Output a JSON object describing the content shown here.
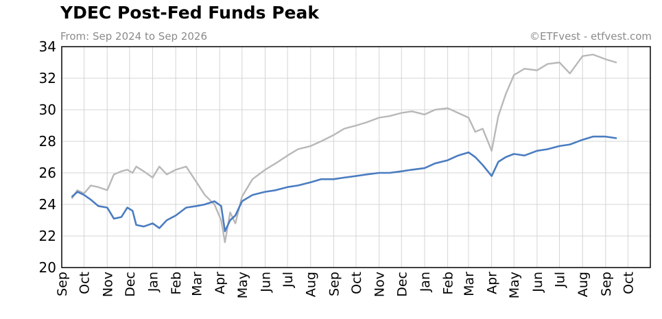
{
  "chart_data": {
    "type": "line",
    "title": "YDEC Post-Fed Funds Peak",
    "subtitle": "From: Sep 2024 to Sep 2026",
    "credit": "©ETFvest - etfvest.com",
    "xlabel": "",
    "ylabel": "",
    "ylim": [
      20,
      34
    ],
    "yticks": [
      20,
      22,
      24,
      26,
      28,
      30,
      32,
      34
    ],
    "xlim": [
      "2024-09-01",
      "2026-10-31"
    ],
    "x_tick_labels": [
      "Sep",
      "Oct",
      "Nov",
      "Dec",
      "Jan",
      "Feb",
      "Mar",
      "Apr",
      "May",
      "Jun",
      "Jul",
      "Aug",
      "Sep",
      "Oct",
      "Nov",
      "Dec",
      "Jan",
      "Feb",
      "Mar",
      "Apr",
      "May",
      "Jun",
      "Jul",
      "Aug",
      "Sep",
      "Oct"
    ],
    "x_tick_dates": [
      "2024-09-01",
      "2024-10-01",
      "2024-11-01",
      "2024-12-01",
      "2025-01-01",
      "2025-02-01",
      "2025-03-01",
      "2025-04-01",
      "2025-05-01",
      "2025-06-01",
      "2025-07-01",
      "2025-08-01",
      "2025-09-01",
      "2025-10-01",
      "2025-11-01",
      "2025-12-01",
      "2026-01-01",
      "2026-02-01",
      "2026-03-01",
      "2026-04-01",
      "2026-05-01",
      "2026-06-01",
      "2026-07-01",
      "2026-08-01",
      "2026-09-01",
      "2026-10-01"
    ],
    "grid": true,
    "series": [
      {
        "color": "#4a7cc0",
        "x": [
          "2024-09-15",
          "2024-09-22",
          "2024-10-01",
          "2024-10-10",
          "2024-10-20",
          "2024-11-01",
          "2024-11-10",
          "2024-11-20",
          "2024-11-28",
          "2024-12-05",
          "2024-12-10",
          "2024-12-20",
          "2025-01-01",
          "2025-01-10",
          "2025-01-20",
          "2025-02-01",
          "2025-02-15",
          "2025-03-01",
          "2025-03-12",
          "2025-03-25",
          "2025-04-03",
          "2025-04-08",
          "2025-04-15",
          "2025-04-22",
          "2025-05-01",
          "2025-05-15",
          "2025-06-01",
          "2025-06-15",
          "2025-07-01",
          "2025-07-15",
          "2025-08-01",
          "2025-08-15",
          "2025-09-01",
          "2025-09-15",
          "2025-10-01",
          "2025-10-15",
          "2025-11-01",
          "2025-11-15",
          "2025-12-01",
          "2025-12-15",
          "2026-01-01",
          "2026-01-15",
          "2026-02-01",
          "2026-02-15",
          "2026-03-01",
          "2026-03-10",
          "2026-03-20",
          "2026-04-01",
          "2026-04-10",
          "2026-04-20",
          "2026-05-01",
          "2026-05-15",
          "2026-06-01",
          "2026-06-15",
          "2026-07-01",
          "2026-07-15",
          "2026-08-01",
          "2026-08-15",
          "2026-09-01",
          "2026-09-15"
        ],
        "values": [
          24.5,
          24.8,
          24.6,
          24.3,
          23.9,
          23.8,
          23.1,
          23.2,
          23.8,
          23.6,
          22.7,
          22.6,
          22.8,
          22.5,
          23.0,
          23.3,
          23.8,
          23.9,
          24.0,
          24.2,
          23.9,
          22.3,
          23.0,
          23.3,
          24.2,
          24.6,
          24.8,
          24.9,
          25.1,
          25.2,
          25.4,
          25.6,
          25.6,
          25.7,
          25.8,
          25.9,
          26.0,
          26.0,
          26.1,
          26.2,
          26.3,
          26.6,
          26.8,
          27.1,
          27.3,
          27.0,
          26.5,
          25.8,
          26.7,
          27.0,
          27.2,
          27.1,
          27.4,
          27.5,
          27.7,
          27.8,
          28.1,
          28.3,
          28.3,
          28.2
        ]
      },
      {
        "color": "#b8b8b8",
        "x": [
          "2024-09-15",
          "2024-09-22",
          "2024-10-01",
          "2024-10-10",
          "2024-10-20",
          "2024-11-01",
          "2024-11-10",
          "2024-11-20",
          "2024-11-28",
          "2024-12-05",
          "2024-12-10",
          "2024-12-20",
          "2025-01-01",
          "2025-01-10",
          "2025-01-20",
          "2025-02-01",
          "2025-02-15",
          "2025-03-01",
          "2025-03-12",
          "2025-03-25",
          "2025-04-03",
          "2025-04-08",
          "2025-04-15",
          "2025-04-22",
          "2025-05-01",
          "2025-05-15",
          "2025-06-01",
          "2025-06-15",
          "2025-07-01",
          "2025-07-15",
          "2025-08-01",
          "2025-08-15",
          "2025-09-01",
          "2025-09-15",
          "2025-10-01",
          "2025-10-15",
          "2025-11-01",
          "2025-11-15",
          "2025-12-01",
          "2025-12-15",
          "2026-01-01",
          "2026-01-15",
          "2026-02-01",
          "2026-02-15",
          "2026-03-01",
          "2026-03-10",
          "2026-03-20",
          "2026-04-01",
          "2026-04-10",
          "2026-04-20",
          "2026-05-01",
          "2026-05-15",
          "2026-06-01",
          "2026-06-15",
          "2026-07-01",
          "2026-07-15",
          "2026-08-01",
          "2026-08-15",
          "2026-09-01",
          "2026-09-15"
        ],
        "values": [
          24.4,
          24.9,
          24.7,
          25.2,
          25.1,
          24.9,
          25.9,
          26.1,
          26.2,
          26.0,
          26.4,
          26.1,
          25.7,
          26.4,
          25.9,
          26.2,
          26.4,
          25.4,
          24.6,
          24.0,
          23.0,
          21.6,
          23.5,
          22.8,
          24.5,
          25.6,
          26.2,
          26.6,
          27.1,
          27.5,
          27.7,
          28.0,
          28.4,
          28.8,
          29.0,
          29.2,
          29.5,
          29.6,
          29.8,
          29.9,
          29.7,
          30.0,
          30.1,
          29.8,
          29.5,
          28.6,
          28.8,
          27.4,
          29.6,
          31.0,
          32.2,
          32.6,
          32.5,
          32.9,
          33.0,
          32.3,
          33.4,
          33.5,
          33.2,
          33.0
        ]
      }
    ]
  }
}
